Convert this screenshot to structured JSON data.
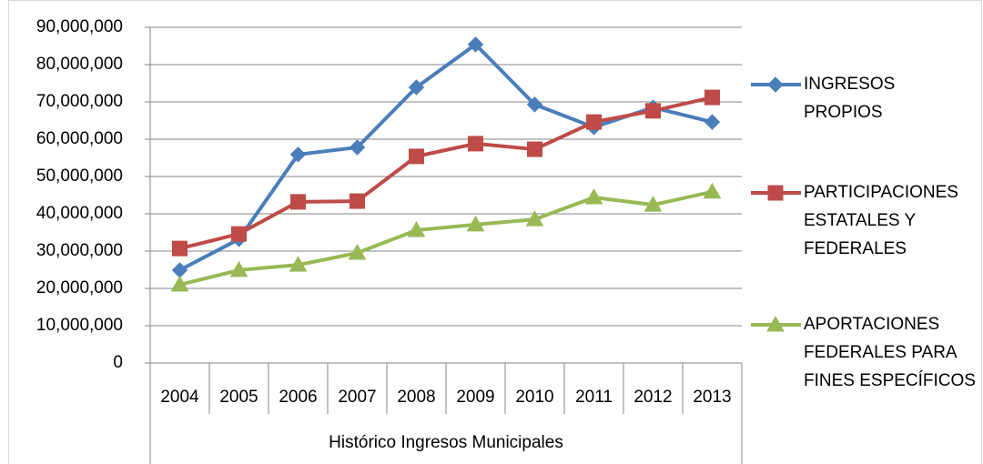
{
  "chart_data": {
    "type": "line",
    "categories": [
      "2004",
      "2005",
      "2006",
      "2007",
      "2008",
      "2009",
      "2010",
      "2011",
      "2012",
      "2013"
    ],
    "x_label": "Histórico Ingresos Municipales",
    "series": [
      {
        "name": "INGRESOS PROPIOS",
        "color": "#4a7ebb",
        "marker": "diamond",
        "values": [
          24900000,
          33200000,
          55900000,
          57800000,
          73900000,
          85400000,
          69300000,
          63200000,
          68500000,
          64600000
        ]
      },
      {
        "name": "PARTICIPACIONES ESTATALES Y FEDERALES",
        "color": "#be4b48",
        "marker": "square",
        "values": [
          30700000,
          34600000,
          43200000,
          43400000,
          55400000,
          58800000,
          57300000,
          64600000,
          67600000,
          71200000
        ]
      },
      {
        "name": "APORTACIONES FEDERALES PARA FINES ESPECÍFICOS",
        "color": "#98b954",
        "marker": "triangle",
        "values": [
          21000000,
          24900000,
          26300000,
          29500000,
          35600000,
          37100000,
          38500000,
          44400000,
          42400000,
          45900000
        ]
      }
    ],
    "ylim": [
      0,
      90000000
    ],
    "yticks": [
      0,
      {
        "value": 10000000,
        "label": "10,000,000"
      },
      {
        "value": 20000000,
        "label": "20,000,000"
      },
      {
        "value": 30000000,
        "label": "30,000,000"
      },
      {
        "value": 40000000,
        "label": "40,000,000"
      },
      {
        "value": 50000000,
        "label": "50,000,000"
      },
      {
        "value": 60000000,
        "label": "60,000,000"
      },
      {
        "value": 70000000,
        "label": "70,000,000"
      },
      {
        "value": 80000000,
        "label": "80,000,000"
      },
      {
        "value": 90000000,
        "label": "90,000,000"
      }
    ],
    "grid": true,
    "legend": "right"
  }
}
